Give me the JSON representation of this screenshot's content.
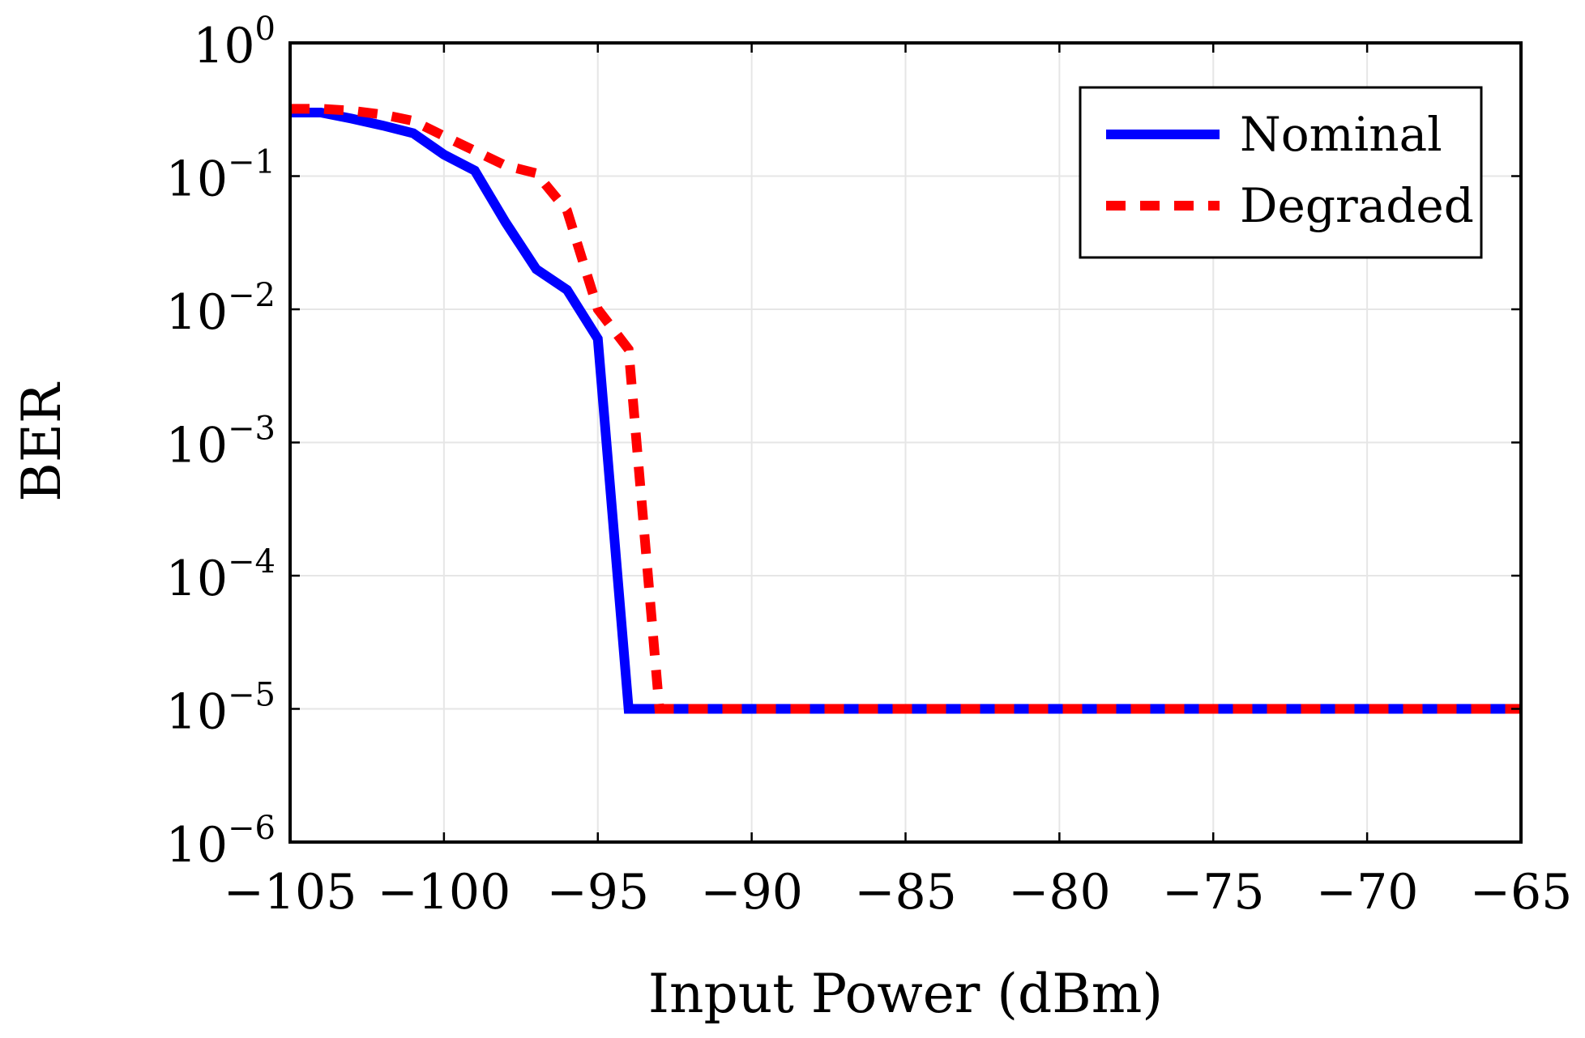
{
  "chart_data": {
    "type": "line",
    "title": "",
    "xlabel": "Input Power (dBm)",
    "ylabel": "BER",
    "xlim": [
      -105,
      -65
    ],
    "ylim": [
      1e-06,
      1
    ],
    "yscale": "log",
    "grid": true,
    "legend_position": "top-right",
    "x_ticks": [
      -105,
      -100,
      -95,
      -90,
      -85,
      -80,
      -75,
      -70,
      -65
    ],
    "x_tick_labels": [
      "−105",
      "−100",
      "−95",
      "−90",
      "−85",
      "−80",
      "−75",
      "−70",
      "−65"
    ],
    "y_ticks": [
      {
        "value": 1,
        "base": "10",
        "exp": "0"
      },
      {
        "value": 0.1,
        "base": "10",
        "exp": "−1"
      },
      {
        "value": 0.01,
        "base": "10",
        "exp": "−2"
      },
      {
        "value": 0.001,
        "base": "10",
        "exp": "−3"
      },
      {
        "value": 0.0001,
        "base": "10",
        "exp": "−4"
      },
      {
        "value": 1e-05,
        "base": "10",
        "exp": "−5"
      },
      {
        "value": 1e-06,
        "base": "10",
        "exp": "−6"
      }
    ],
    "series": [
      {
        "name": "Nominal",
        "color": "#0000ff",
        "style": "solid",
        "x": [
          -105,
          -104,
          -103,
          -102,
          -101,
          -100,
          -99,
          -98,
          -97,
          -96,
          -95,
          -94,
          -93,
          -65
        ],
        "y": [
          0.3,
          0.3,
          0.27,
          0.24,
          0.21,
          0.145,
          0.11,
          0.045,
          0.02,
          0.014,
          0.006,
          1e-05,
          1e-05,
          1e-05
        ]
      },
      {
        "name": "Degraded",
        "color": "#ff0000",
        "style": "dashed",
        "x": [
          -105,
          -104,
          -103,
          -102,
          -101,
          -100,
          -99,
          -98,
          -97,
          -96,
          -95,
          -94,
          -93,
          -65
        ],
        "y": [
          0.32,
          0.32,
          0.31,
          0.29,
          0.26,
          0.2,
          0.155,
          0.12,
          0.105,
          0.055,
          0.01,
          0.005,
          1e-05,
          1e-05
        ]
      }
    ]
  }
}
